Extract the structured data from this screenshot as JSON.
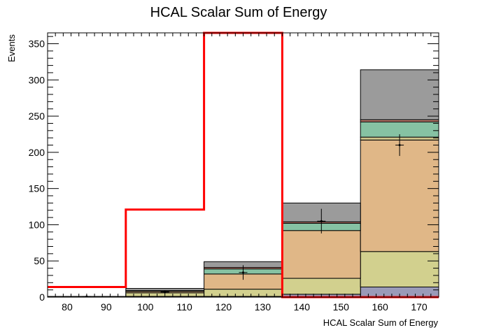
{
  "chart_data": {
    "type": "bar",
    "stacked": true,
    "title": "HCAL Scalar Sum of Energy",
    "xlabel": "HCAL Scalar Sum of Energy",
    "ylabel": "Events",
    "xlim": [
      75,
      175
    ],
    "ylim": [
      0,
      365
    ],
    "xticks": [
      80,
      90,
      100,
      110,
      120,
      130,
      140,
      150,
      160,
      170
    ],
    "yticks": [
      0,
      50,
      100,
      150,
      200,
      250,
      300,
      350
    ],
    "bin_edges": [
      75,
      95,
      115,
      135,
      155,
      175
    ],
    "stack_series": [
      {
        "color": "#9a9ab8",
        "values": [
          0,
          1,
          1,
          4,
          14
        ]
      },
      {
        "color": "#d2d08e",
        "values": [
          1,
          5,
          10,
          22,
          49
        ]
      },
      {
        "color": "#e0b787",
        "values": [
          0,
          2,
          21,
          66,
          154
        ]
      },
      {
        "color": "#cfc48a",
        "values": [
          0,
          0,
          0,
          0,
          4
        ]
      },
      {
        "color": "#86c2a3",
        "values": [
          0,
          1,
          7,
          10,
          21
        ]
      },
      {
        "color": "#c07d6f",
        "values": [
          0,
          0,
          2,
          2,
          3
        ]
      },
      {
        "color": "#9b9b9b",
        "values": [
          0,
          3,
          8,
          26,
          69
        ]
      }
    ],
    "data_points": [
      {
        "x": 85,
        "y": 1,
        "err": 1
      },
      {
        "x": 105,
        "y": 7,
        "err": 2.6
      },
      {
        "x": 125,
        "y": 34,
        "err": 10
      },
      {
        "x": 145,
        "y": 105,
        "err": 17
      },
      {
        "x": 165,
        "y": 210,
        "err": 15
      }
    ],
    "signal_series": {
      "color": "#ff0000",
      "values": [
        14,
        121,
        365,
        0,
        0
      ]
    }
  }
}
